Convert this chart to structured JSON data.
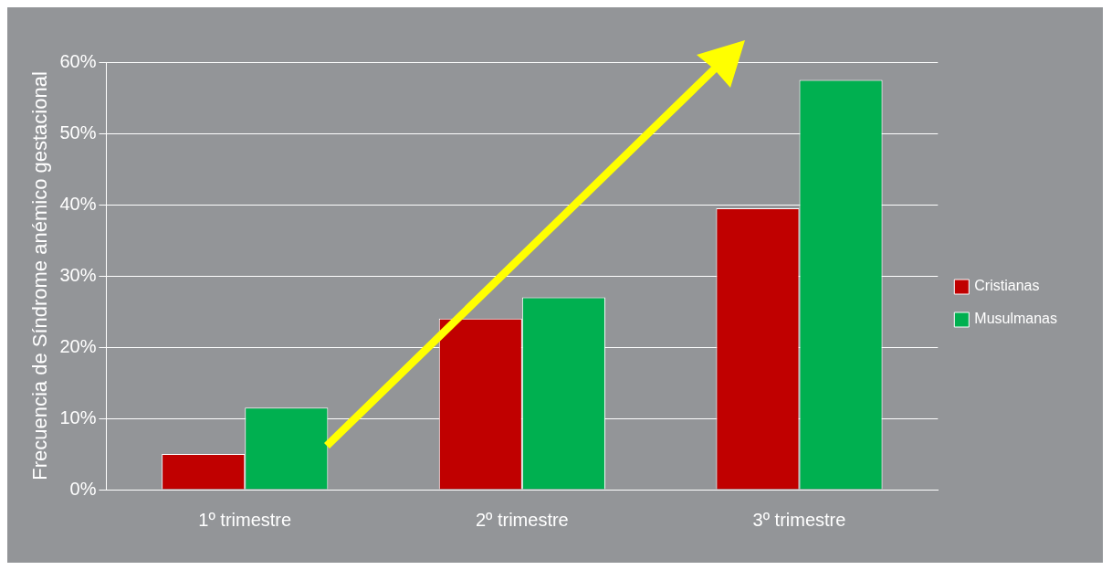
{
  "chart_data": {
    "type": "bar",
    "ylabel": "Frecuencia de Síndrome anémico gestacional",
    "categories": [
      "1º trimestre",
      "2º trimestre",
      "3º trimestre"
    ],
    "series": [
      {
        "name": "Cristianas",
        "color": "#c00000",
        "values": [
          5,
          24,
          39.5
        ]
      },
      {
        "name": "Musulmanas",
        "color": "#00b050",
        "values": [
          11.5,
          27,
          57.5
        ]
      }
    ],
    "ylim": [
      0,
      60
    ],
    "yticks": [
      {
        "value": 0,
        "label": "0%"
      },
      {
        "value": 10,
        "label": "10%"
      },
      {
        "value": 20,
        "label": "20%"
      },
      {
        "value": 30,
        "label": "30%"
      },
      {
        "value": 40,
        "label": "40%"
      },
      {
        "value": 50,
        "label": "50%"
      },
      {
        "value": 60,
        "label": "60%"
      }
    ],
    "grid": "y",
    "legend": "right"
  }
}
